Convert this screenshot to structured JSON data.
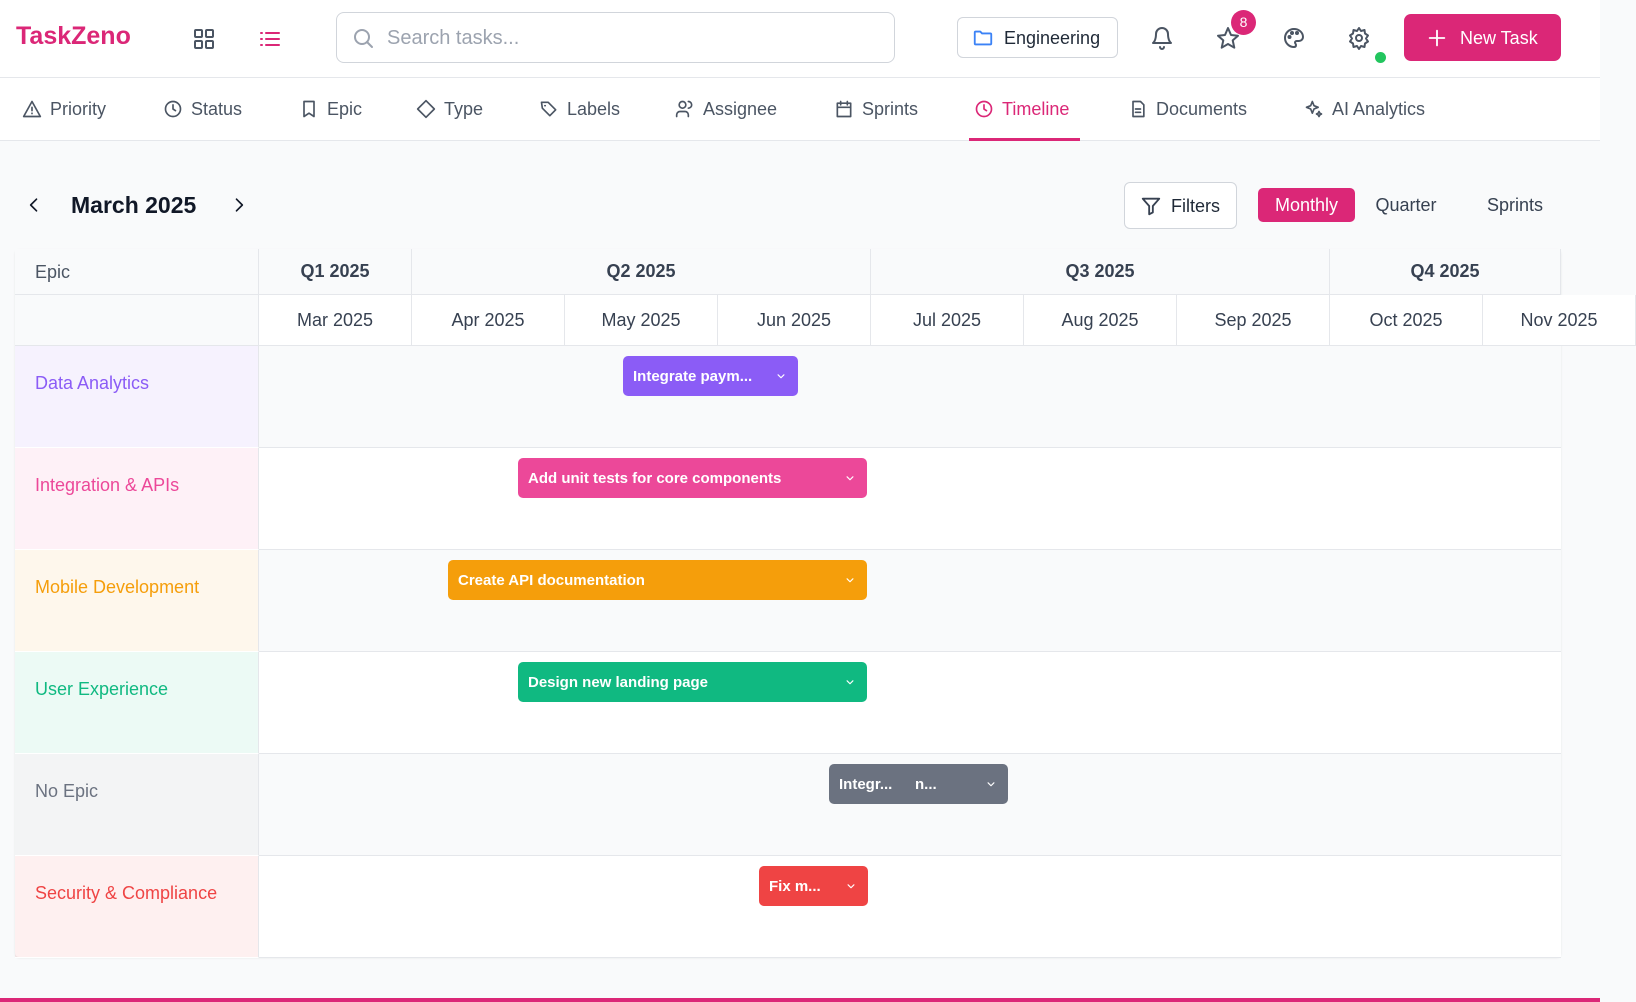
{
  "header": {
    "brand": "TaskZeno",
    "search_placeholder": "Search tasks...",
    "project": "Engineering",
    "notification_count": 8,
    "new_task_button": "New Task"
  },
  "tabs": [
    "Priority",
    "Status",
    "Epic",
    "Type",
    "Labels",
    "Assignee",
    "Sprints",
    "Timeline",
    "Documents",
    "AI Analytics"
  ],
  "active_tab_index": 7,
  "toolbar": {
    "period": "March 2025",
    "filters": "Filters",
    "views": [
      "Monthly",
      "Quarter",
      "Sprints"
    ],
    "active_view_index": 0
  },
  "timeline": {
    "epic_header": "Epic",
    "quarters": [
      "Q1 2025",
      "Q2 2025",
      "Q3 2025",
      "Q4 2025"
    ],
    "months": [
      "Mar 2025",
      "Apr 2025",
      "May 2025",
      "Jun 2025",
      "Jul 2025",
      "Aug 2025",
      "Sep 2025",
      "Oct 2025",
      "Nov 2025"
    ],
    "rows": [
      {
        "epic": "Data Analytics",
        "color": "#8b5cf6",
        "tasks": [
          "Integrate paym..."
        ]
      },
      {
        "epic": "Integration & APIs",
        "color": "#ec4899",
        "tasks": [
          "Add unit tests for core components"
        ]
      },
      {
        "epic": "Mobile Development",
        "color": "#f59e0b",
        "tasks": [
          "Create API documentation"
        ]
      },
      {
        "epic": "User Experience",
        "color": "#10b981",
        "tasks": [
          "Design new landing page"
        ]
      },
      {
        "epic": "No Epic",
        "color": "#6b7280",
        "tasks": [
          "Integr...",
          "n..."
        ]
      },
      {
        "epic": "Security & Compliance",
        "color": "#ef4444",
        "tasks": [
          "Fix m..."
        ]
      }
    ]
  }
}
